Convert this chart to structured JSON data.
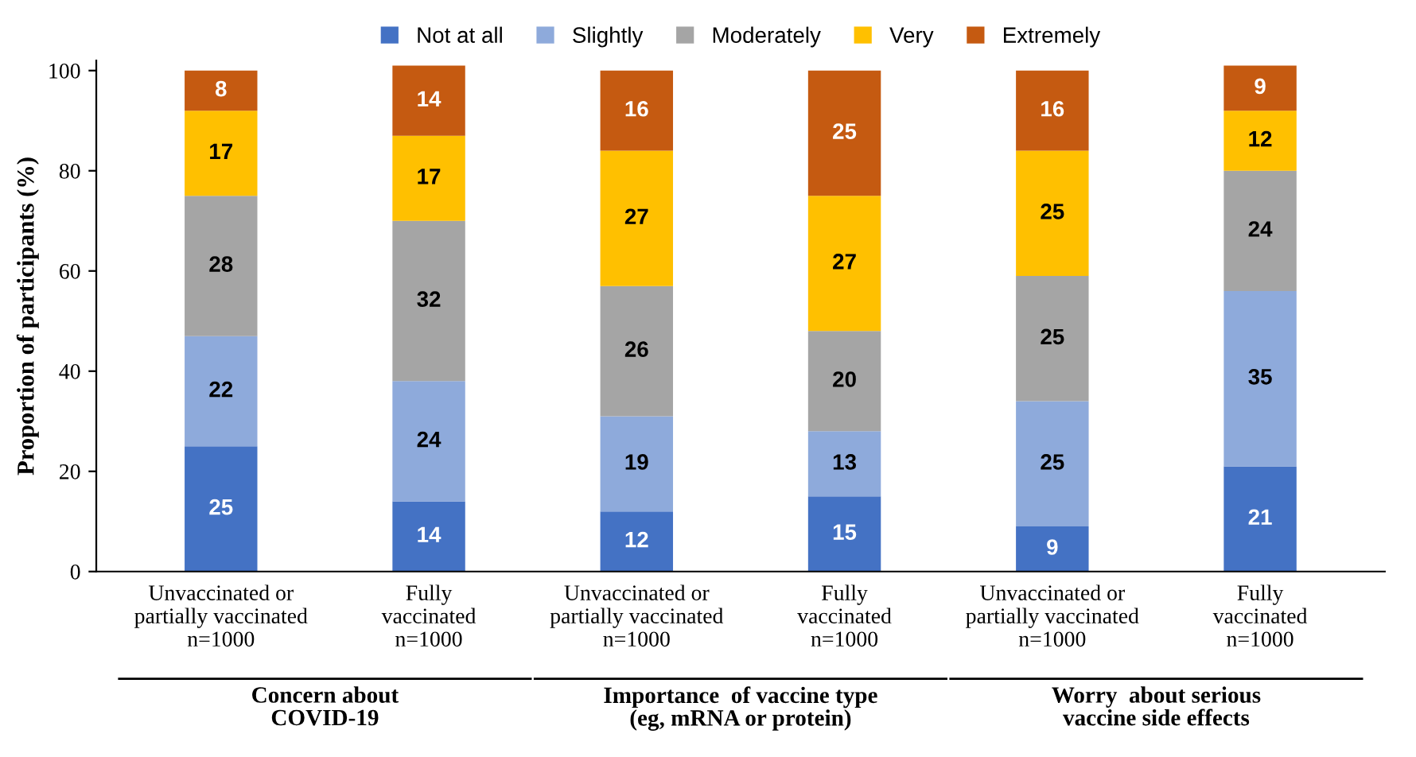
{
  "chart_data": {
    "type": "bar",
    "stacked": true,
    "ylabel": "Proportion of participants (%)",
    "categories": [
      "Unvaccinated or\npartially vaccinated\nn=1000",
      "Fully\nvaccinated\nn=1000",
      "Unvaccinated or\npartially vaccinated\nn=1000",
      "Fully\nvaccinated\nn=1000",
      "Unvaccinated or\npartially vaccinated\nn=1000",
      "Fully\nvaccinated\nn=1000"
    ],
    "series": [
      {
        "name": "Not at all",
        "color": "#4472c4",
        "values": [
          25,
          14,
          12,
          15,
          9,
          21
        ]
      },
      {
        "name": "Slightly",
        "color": "#8eaadb",
        "values": [
          22,
          24,
          19,
          13,
          25,
          35
        ]
      },
      {
        "name": "Moderately",
        "color": "#a5a5a5",
        "values": [
          28,
          32,
          26,
          20,
          25,
          24
        ]
      },
      {
        "name": "Very",
        "color": "#ffc000",
        "values": [
          17,
          17,
          27,
          27,
          25,
          12
        ]
      },
      {
        "name": "Extremely",
        "color": "#c55a11",
        "values": [
          8,
          14,
          16,
          25,
          16,
          9
        ]
      }
    ],
    "annotations": [
      "Concern about\nCOVID-19",
      "Importance  of vaccine type\n(eg, mRNA or protein)",
      "Worry  about serious\nvaccine side effects"
    ],
    "ylim": [
      0,
      102
    ],
    "yticks": [
      0,
      20,
      40,
      60,
      80,
      100
    ],
    "data_labels": true,
    "legend": "top",
    "grid": false
  }
}
